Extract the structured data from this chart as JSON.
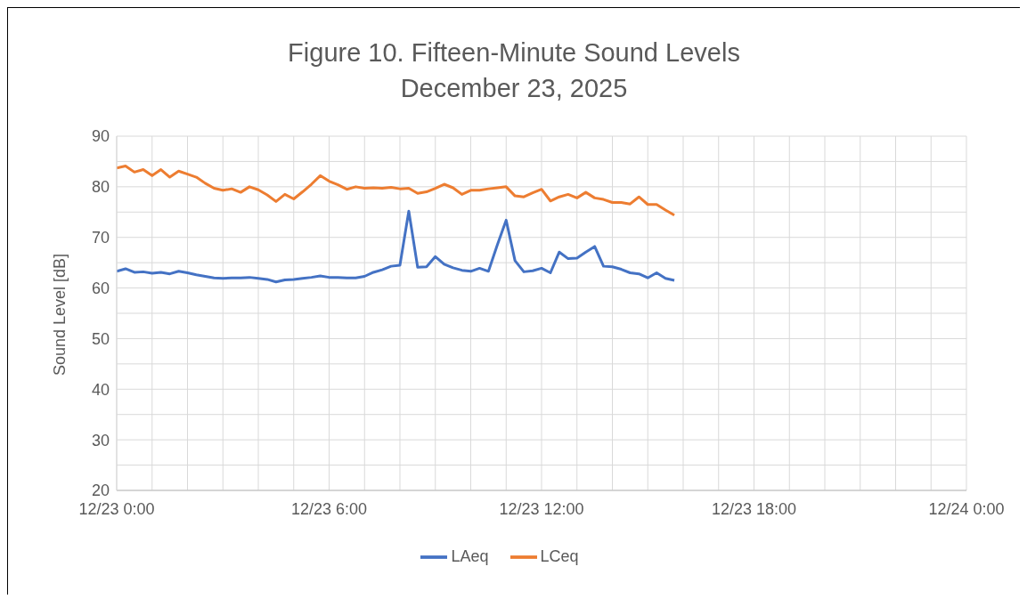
{
  "chart_data": {
    "type": "line",
    "title": "Figure 10.  Fifteen-Minute Sound Levels",
    "subtitle": "December 23, 2025",
    "ylabel": "Sound Level [dB]",
    "x": [
      "2025-12-23T00:00",
      "2025-12-23T00:15",
      "2025-12-23T00:30",
      "2025-12-23T00:45",
      "2025-12-23T01:00",
      "2025-12-23T01:15",
      "2025-12-23T01:30",
      "2025-12-23T01:45",
      "2025-12-23T02:00",
      "2025-12-23T02:15",
      "2025-12-23T02:30",
      "2025-12-23T02:45",
      "2025-12-23T03:00",
      "2025-12-23T03:15",
      "2025-12-23T03:30",
      "2025-12-23T03:45",
      "2025-12-23T04:00",
      "2025-12-23T04:15",
      "2025-12-23T04:30",
      "2025-12-23T04:45",
      "2025-12-23T05:00",
      "2025-12-23T05:15",
      "2025-12-23T05:30",
      "2025-12-23T05:45",
      "2025-12-23T06:00",
      "2025-12-23T06:15",
      "2025-12-23T06:30",
      "2025-12-23T06:45",
      "2025-12-23T07:00",
      "2025-12-23T07:15",
      "2025-12-23T07:30",
      "2025-12-23T07:45",
      "2025-12-23T08:00",
      "2025-12-23T08:15",
      "2025-12-23T08:30",
      "2025-12-23T08:45",
      "2025-12-23T09:00",
      "2025-12-23T09:15",
      "2025-12-23T09:30",
      "2025-12-23T09:45",
      "2025-12-23T10:00",
      "2025-12-23T10:15",
      "2025-12-23T10:30",
      "2025-12-23T10:45",
      "2025-12-23T11:00",
      "2025-12-23T11:15",
      "2025-12-23T11:30",
      "2025-12-23T11:45",
      "2025-12-23T12:00",
      "2025-12-23T12:15",
      "2025-12-23T12:30",
      "2025-12-23T12:45",
      "2025-12-23T13:00",
      "2025-12-23T13:15",
      "2025-12-23T13:30",
      "2025-12-23T13:45",
      "2025-12-23T14:00",
      "2025-12-23T14:15",
      "2025-12-23T14:30",
      "2025-12-23T14:45",
      "2025-12-23T15:00",
      "2025-12-23T15:15",
      "2025-12-23T15:30",
      "2025-12-23T15:45"
    ],
    "series": [
      {
        "name": "LAeq",
        "color": "#4472c4",
        "values": [
          63.3,
          63.8,
          63.1,
          63.2,
          62.9,
          63.1,
          62.8,
          63.3,
          63.0,
          62.6,
          62.3,
          62.0,
          61.9,
          62.0,
          62.0,
          62.1,
          61.9,
          61.7,
          61.2,
          61.6,
          61.7,
          61.9,
          62.1,
          62.4,
          62.1,
          62.1,
          62.0,
          62.0,
          62.3,
          63.1,
          63.6,
          64.3,
          64.5,
          75.2,
          64.1,
          64.2,
          66.2,
          64.7,
          64.0,
          63.5,
          63.3,
          63.9,
          63.3,
          68.5,
          73.4,
          65.4,
          63.2,
          63.4,
          63.9,
          63.0,
          67.1,
          65.8,
          65.9,
          67.1,
          68.2,
          64.3,
          64.2,
          63.7,
          63.0,
          62.8,
          62.0,
          63.0,
          61.9,
          61.5
        ]
      },
      {
        "name": "LCeq",
        "color": "#ed7d31",
        "values": [
          83.7,
          84.1,
          82.9,
          83.4,
          82.2,
          83.4,
          81.9,
          83.1,
          82.5,
          81.9,
          80.7,
          79.7,
          79.3,
          79.6,
          78.9,
          80.0,
          79.4,
          78.4,
          77.1,
          78.5,
          77.6,
          79.0,
          80.5,
          82.2,
          81.1,
          80.4,
          79.5,
          80.0,
          79.7,
          79.8,
          79.7,
          79.9,
          79.6,
          79.7,
          78.7,
          79.0,
          79.7,
          80.5,
          79.8,
          78.5,
          79.3,
          79.3,
          79.6,
          79.8,
          80.0,
          78.2,
          78.0,
          78.8,
          79.5,
          77.2,
          78.0,
          78.5,
          77.8,
          78.9,
          77.8,
          77.5,
          76.9,
          76.9,
          76.6,
          78.0,
          76.5,
          76.5,
          75.4,
          74.4
        ]
      }
    ],
    "xlim": [
      "2025-12-23T00:00",
      "2025-12-24T00:00"
    ],
    "xticks": [
      {
        "value": "2025-12-23T00:00",
        "label": "12/23 0:00"
      },
      {
        "value": "2025-12-23T01:00",
        "label": null
      },
      {
        "value": "2025-12-23T02:00",
        "label": null
      },
      {
        "value": "2025-12-23T03:00",
        "label": null
      },
      {
        "value": "2025-12-23T04:00",
        "label": null
      },
      {
        "value": "2025-12-23T05:00",
        "label": null
      },
      {
        "value": "2025-12-23T06:00",
        "label": "12/23 6:00"
      },
      {
        "value": "2025-12-23T07:00",
        "label": null
      },
      {
        "value": "2025-12-23T08:00",
        "label": null
      },
      {
        "value": "2025-12-23T09:00",
        "label": null
      },
      {
        "value": "2025-12-23T10:00",
        "label": null
      },
      {
        "value": "2025-12-23T11:00",
        "label": null
      },
      {
        "value": "2025-12-23T12:00",
        "label": "12/23 12:00"
      },
      {
        "value": "2025-12-23T13:00",
        "label": null
      },
      {
        "value": "2025-12-23T14:00",
        "label": null
      },
      {
        "value": "2025-12-23T15:00",
        "label": null
      },
      {
        "value": "2025-12-23T16:00",
        "label": null
      },
      {
        "value": "2025-12-23T17:00",
        "label": null
      },
      {
        "value": "2025-12-23T18:00",
        "label": "12/23 18:00"
      },
      {
        "value": "2025-12-23T19:00",
        "label": null
      },
      {
        "value": "2025-12-23T20:00",
        "label": null
      },
      {
        "value": "2025-12-23T21:00",
        "label": null
      },
      {
        "value": "2025-12-23T22:00",
        "label": null
      },
      {
        "value": "2025-12-23T23:00",
        "label": null
      },
      {
        "value": "2025-12-24T00:00",
        "label": "12/24 0:00"
      }
    ],
    "ylim": [
      20,
      90
    ],
    "yticks": [
      20,
      {
        "value": 25,
        "label": null
      },
      30,
      {
        "value": 35,
        "label": null
      },
      40,
      {
        "value": 45,
        "label": null
      },
      50,
      {
        "value": 55,
        "label": null
      },
      60,
      {
        "value": 65,
        "label": null
      },
      70,
      {
        "value": 75,
        "label": null
      },
      80,
      {
        "value": 85,
        "label": null
      },
      90
    ],
    "grid": true,
    "legend": "bottom",
    "marker": "none",
    "line_style": "solid"
  }
}
